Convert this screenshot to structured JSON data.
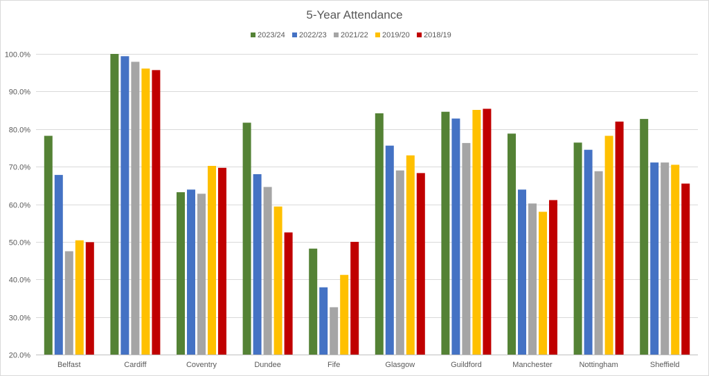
{
  "chart_data": {
    "type": "bar",
    "title": "5-Year Attendance",
    "xlabel": "",
    "ylabel": "",
    "ylim": [
      20.0,
      100.0
    ],
    "y_ticks": [
      {
        "value": 20,
        "label": "20.0%"
      },
      {
        "value": 30,
        "label": "30.0%"
      },
      {
        "value": 40,
        "label": "40.0%"
      },
      {
        "value": 50,
        "label": "50.0%"
      },
      {
        "value": 60,
        "label": "60.0%"
      },
      {
        "value": 70,
        "label": "70.0%"
      },
      {
        "value": 80,
        "label": "80.0%"
      },
      {
        "value": 90,
        "label": "90.0%"
      },
      {
        "value": 100,
        "label": "100.0%"
      }
    ],
    "grid": true,
    "legend_position": "top-center",
    "categories": [
      "Belfast",
      "Cardiff",
      "Coventry",
      "Dundee",
      "Fife",
      "Glasgow",
      "Guildford",
      "Manchester",
      "Nottingham",
      "Sheffield"
    ],
    "series": [
      {
        "name": "2023/24",
        "color": "#548235",
        "values": [
          78.2,
          100.0,
          63.2,
          81.7,
          48.2,
          84.2,
          84.6,
          78.8,
          76.4,
          82.7
        ]
      },
      {
        "name": "2022/23",
        "color": "#4472C4",
        "values": [
          67.8,
          99.4,
          63.9,
          68.0,
          37.9,
          75.6,
          82.8,
          63.9,
          74.5,
          71.1
        ]
      },
      {
        "name": "2021/22",
        "color": "#A5A5A5",
        "values": [
          47.5,
          97.9,
          62.8,
          64.6,
          32.6,
          69.0,
          76.3,
          60.2,
          68.8,
          71.1
        ]
      },
      {
        "name": "2019/20",
        "color": "#FFC000",
        "values": [
          50.4,
          96.1,
          70.2,
          59.4,
          41.2,
          73.0,
          85.1,
          58.0,
          78.2,
          70.5
        ]
      },
      {
        "name": "2018/19",
        "color": "#C00000",
        "values": [
          49.9,
          95.7,
          69.7,
          52.5,
          50.0,
          68.3,
          85.4,
          61.1,
          82.0,
          65.5
        ]
      }
    ]
  }
}
